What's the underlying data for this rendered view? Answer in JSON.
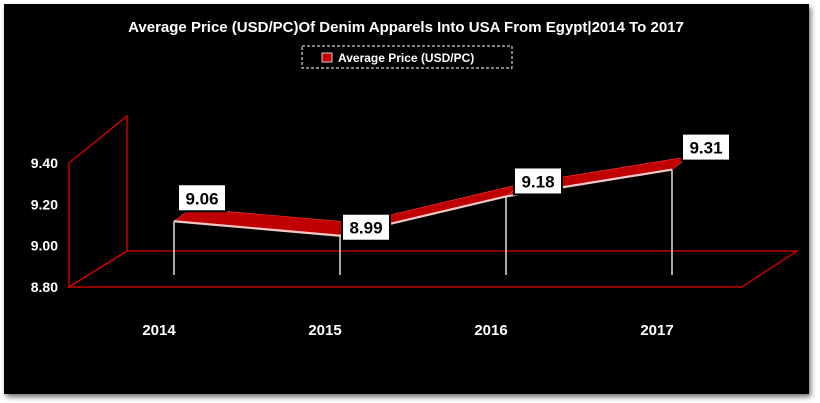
{
  "chart_data": {
    "type": "line",
    "title": "Average Price (USD/PC)Of Denim Apparels Into USA From Egypt|2014 To 2017",
    "categories": [
      "2014",
      "2015",
      "2016",
      "2017"
    ],
    "series": [
      {
        "name": "Average Price (USD/PC)",
        "values": [
          9.06,
          8.99,
          9.18,
          9.31
        ],
        "color": "#c00000"
      }
    ],
    "yticks": [
      "8.80",
      "9.00",
      "9.20",
      "9.40"
    ],
    "ylim": [
      8.8,
      9.4
    ],
    "legend": "top-center",
    "grid": false,
    "data_labels": [
      "9.06",
      "8.99",
      "9.18",
      "9.31"
    ],
    "colors": {
      "background": "#000000",
      "axis": "#e00000",
      "ribbon": "#c00000",
      "text": "#ffffff",
      "label_box": "#ffffff"
    }
  }
}
